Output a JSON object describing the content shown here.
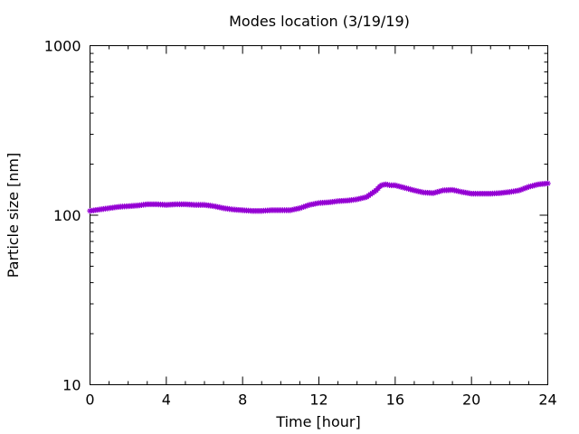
{
  "chart_data": {
    "type": "line",
    "title": "Modes location (3/19/19)",
    "xlabel": "Time [hour]",
    "ylabel": "Particle size [nm]",
    "xlim": [
      0,
      24
    ],
    "ylim": [
      10,
      1000
    ],
    "yscale": "log",
    "grid": false,
    "legend": "none",
    "xticks": [
      0,
      4,
      8,
      12,
      16,
      20,
      24
    ],
    "xtick_labels": [
      "0",
      "4",
      "8",
      "12",
      "16",
      "20",
      "24"
    ],
    "yticks": [
      10,
      100,
      1000
    ],
    "ytick_labels": [
      "10",
      "100",
      "1000"
    ],
    "series": [
      {
        "color": "#9400d3",
        "marker": "star",
        "x": [
          0,
          0.5,
          1,
          1.5,
          2,
          2.5,
          3,
          3.5,
          4,
          4.5,
          5,
          5.5,
          6,
          6.5,
          7,
          7.5,
          8,
          8.5,
          9,
          9.5,
          10,
          10.5,
          11,
          11.5,
          12,
          12.5,
          13,
          13.5,
          14,
          14.5,
          15,
          15.25,
          15.5,
          15.75,
          16,
          16.5,
          17,
          17.5,
          18,
          18.5,
          19,
          19.5,
          20,
          20.5,
          21,
          21.5,
          22,
          22.5,
          23,
          23.5,
          24
        ],
        "y": [
          106,
          108,
          110,
          112,
          113,
          114,
          116,
          116,
          115,
          116,
          116,
          115,
          115,
          113,
          110,
          108,
          107,
          106,
          106,
          107,
          107,
          107,
          110,
          115,
          118,
          119,
          121,
          122,
          124,
          128,
          140,
          150,
          152,
          150,
          150,
          145,
          140,
          136,
          135,
          140,
          141,
          137,
          134,
          134,
          134,
          135,
          137,
          140,
          147,
          152,
          154
        ]
      }
    ]
  }
}
